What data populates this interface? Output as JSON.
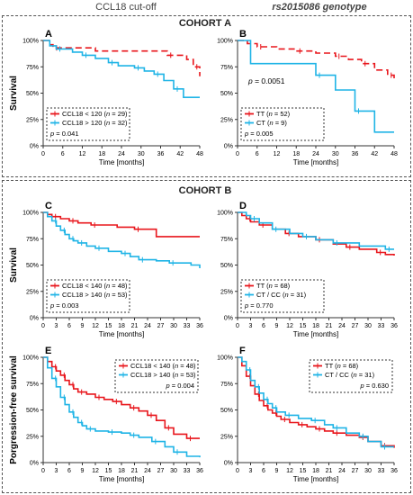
{
  "headers": {
    "left": "CCL18 cut-off",
    "right": "rs2015086 genotype"
  },
  "cohorts": {
    "a": "COHORT A",
    "b": "COHORT B"
  },
  "colors": {
    "red": "#e8161c",
    "blue": "#1fb4e6",
    "axis": "#333333"
  },
  "chart_data": [
    {
      "panel": "A",
      "type": "line",
      "title": "",
      "ylabel": "Survival",
      "xlabel": "Time [months]",
      "xlim": [
        0,
        48
      ],
      "xticks": [
        0,
        6,
        12,
        18,
        24,
        30,
        36,
        42,
        48
      ],
      "ylim": [
        0,
        100
      ],
      "yticks": [
        "0%",
        "25%",
        "50%",
        "75%",
        "100%"
      ],
      "series": [
        {
          "name": "CCL18 < 120 (n = 29)",
          "color": "red",
          "dash": true,
          "x": [
            0,
            2,
            3,
            16,
            38,
            44,
            46,
            48
          ],
          "y": [
            100,
            96,
            93,
            90,
            86,
            82,
            75,
            66
          ]
        },
        {
          "name": "CCL18 > 120 (n = 32)",
          "color": "blue",
          "dash": false,
          "x": [
            0,
            2,
            4,
            9,
            12,
            16,
            20,
            23,
            28,
            31,
            34,
            37,
            40,
            43,
            48
          ],
          "y": [
            100,
            95,
            92,
            89,
            86,
            83,
            79,
            76,
            74,
            71,
            68,
            62,
            54,
            46,
            46
          ]
        }
      ],
      "pvalue_text": "p = 0.041",
      "extra_text": "",
      "legend": "bottom-left"
    },
    {
      "panel": "B",
      "type": "line",
      "title": "",
      "ylabel": "",
      "xlabel": "Time [months]",
      "xlim": [
        0,
        48
      ],
      "xticks": [
        0,
        6,
        12,
        18,
        24,
        30,
        36,
        42,
        48
      ],
      "ylim": [
        0,
        100
      ],
      "yticks": [
        "0%",
        "25%",
        "50%",
        "75%",
        "100%"
      ],
      "series": [
        {
          "name": "TT (n = 52)",
          "color": "red",
          "dash": true,
          "x": [
            0,
            3,
            6,
            12,
            18,
            24,
            30,
            34,
            38,
            42,
            46,
            48
          ],
          "y": [
            100,
            97,
            94,
            92,
            90,
            88,
            85,
            82,
            78,
            72,
            67,
            63
          ]
        },
        {
          "name": "CT (n = 9)",
          "color": "blue",
          "dash": false,
          "x": [
            0,
            4,
            24,
            30,
            36,
            42,
            48
          ],
          "y": [
            100,
            78,
            67,
            53,
            33,
            13,
            13
          ]
        }
      ],
      "pvalue_text": "p = 0.005",
      "extra_text": "p = 0.0051",
      "legend": "bottom-left"
    },
    {
      "panel": "C",
      "type": "line",
      "title": "",
      "ylabel": "Survival",
      "xlabel": "Time [months]",
      "xlim": [
        0,
        36
      ],
      "xticks": [
        0,
        3,
        6,
        9,
        12,
        15,
        18,
        21,
        24,
        27,
        30,
        33,
        36
      ],
      "ylim": [
        0,
        100
      ],
      "yticks": [
        "0%",
        "25%",
        "50%",
        "75%",
        "100%"
      ],
      "series": [
        {
          "name": "CCL18 < 140 (n = 48)",
          "color": "red",
          "dash": false,
          "x": [
            0,
            1,
            2,
            4,
            6,
            8,
            11,
            17,
            21,
            26,
            36
          ],
          "y": [
            100,
            98,
            96,
            94,
            92,
            90,
            88,
            86,
            84,
            77,
            77
          ]
        },
        {
          "name": "CCL18 > 140 (n = 53)",
          "color": "blue",
          "dash": false,
          "x": [
            0,
            1,
            2,
            3,
            4,
            5,
            6,
            7,
            8,
            10,
            12,
            15,
            18,
            20,
            22,
            26,
            29,
            34,
            36
          ],
          "y": [
            100,
            96,
            92,
            87,
            83,
            79,
            75,
            73,
            71,
            68,
            66,
            63,
            61,
            58,
            55,
            54,
            52,
            50,
            47
          ]
        }
      ],
      "pvalue_text": "p = 0.003",
      "extra_text": "",
      "legend": "bottom-left"
    },
    {
      "panel": "D",
      "type": "line",
      "title": "",
      "ylabel": "",
      "xlabel": "Time [months]",
      "xlim": [
        0,
        36
      ],
      "xticks": [
        0,
        3,
        6,
        9,
        12,
        15,
        18,
        21,
        24,
        27,
        30,
        33,
        36
      ],
      "ylim": [
        0,
        100
      ],
      "yticks": [
        "0%",
        "25%",
        "50%",
        "75%",
        "100%"
      ],
      "series": [
        {
          "name": "TT (n = 68)",
          "color": "red",
          "dash": false,
          "x": [
            0,
            1,
            2,
            3,
            5,
            8,
            11,
            14,
            18,
            22,
            25,
            28,
            32,
            34,
            36
          ],
          "y": [
            100,
            97,
            94,
            91,
            88,
            84,
            80,
            77,
            74,
            70,
            67,
            65,
            62,
            60,
            59
          ]
        },
        {
          "name": "CT / CC (n = 31)",
          "color": "blue",
          "dash": false,
          "x": [
            0,
            2,
            3,
            5,
            8,
            12,
            15,
            18,
            22,
            28,
            34,
            36
          ],
          "y": [
            100,
            97,
            94,
            90,
            84,
            80,
            77,
            74,
            71,
            68,
            65,
            65
          ]
        }
      ],
      "pvalue_text": "p = 0.770",
      "extra_text": "",
      "legend": "bottom-left"
    },
    {
      "panel": "E",
      "type": "line",
      "title": "",
      "ylabel": "Porgression-free survival",
      "xlabel": "Time [months]",
      "xlim": [
        0,
        36
      ],
      "xticks": [
        0,
        3,
        6,
        9,
        12,
        15,
        18,
        21,
        24,
        27,
        30,
        33,
        36
      ],
      "ylim": [
        0,
        100
      ],
      "yticks": [
        "0%",
        "25%",
        "50%",
        "75%",
        "100%"
      ],
      "series": [
        {
          "name": "CCL18 < 140 (n = 48)",
          "color": "red",
          "dash": false,
          "x": [
            0,
            1,
            2,
            3,
            4,
            5,
            6,
            7,
            8,
            10,
            12,
            14,
            16,
            18,
            20,
            22,
            24,
            26,
            28,
            30,
            33,
            36
          ],
          "y": [
            100,
            96,
            91,
            87,
            83,
            78,
            74,
            70,
            67,
            65,
            62,
            60,
            58,
            55,
            52,
            49,
            45,
            40,
            33,
            27,
            23,
            23
          ]
        },
        {
          "name": "CCL18 > 140 (n = 53)",
          "color": "blue",
          "dash": false,
          "x": [
            0,
            1,
            2,
            3,
            4,
            5,
            6,
            7,
            8,
            9,
            10,
            12,
            15,
            18,
            20,
            22,
            25,
            28,
            30,
            33,
            36
          ],
          "y": [
            100,
            90,
            80,
            72,
            62,
            55,
            48,
            43,
            38,
            35,
            32,
            30,
            29,
            28,
            26,
            24,
            20,
            15,
            10,
            6,
            5
          ]
        }
      ],
      "pvalue_text": "p = 0.004",
      "extra_text": "",
      "legend": "top-right"
    },
    {
      "panel": "F",
      "type": "line",
      "title": "",
      "ylabel": "",
      "xlabel": "Time [months]",
      "xlim": [
        0,
        36
      ],
      "xticks": [
        0,
        3,
        6,
        9,
        12,
        15,
        18,
        21,
        24,
        27,
        30,
        33,
        36
      ],
      "ylim": [
        0,
        100
      ],
      "yticks": [
        "0%",
        "25%",
        "50%",
        "75%",
        "100%"
      ],
      "series": [
        {
          "name": "TT (n = 68)",
          "color": "red",
          "dash": false,
          "x": [
            0,
            1,
            2,
            3,
            4,
            5,
            6,
            7,
            8,
            9,
            10,
            12,
            14,
            16,
            18,
            20,
            22,
            25,
            28,
            30,
            33,
            36
          ],
          "y": [
            100,
            92,
            82,
            73,
            65,
            59,
            54,
            50,
            47,
            44,
            41,
            38,
            36,
            34,
            32,
            30,
            28,
            26,
            24,
            20,
            16,
            14
          ]
        },
        {
          "name": "CT / CC (n = 31)",
          "color": "blue",
          "dash": false,
          "x": [
            0,
            1,
            2,
            3,
            4,
            5,
            6,
            7,
            8,
            9,
            11,
            14,
            17,
            20,
            22,
            25,
            28,
            30,
            33,
            36
          ],
          "y": [
            100,
            96,
            88,
            78,
            72,
            66,
            60,
            56,
            52,
            48,
            45,
            42,
            40,
            36,
            33,
            28,
            25,
            20,
            15,
            15
          ]
        }
      ],
      "pvalue_text": "p = 0.630",
      "extra_text": "",
      "legend": "top-right"
    }
  ]
}
